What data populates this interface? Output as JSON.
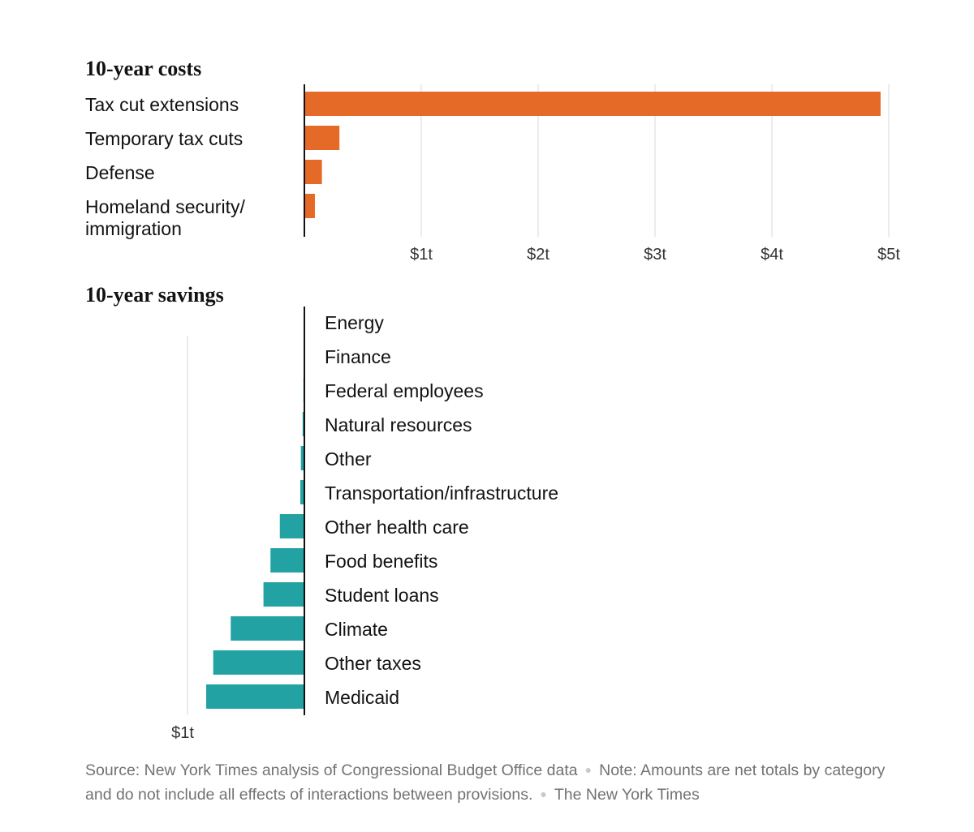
{
  "colors": {
    "cost": "#e66a27",
    "saving": "#22a2a2",
    "axis": "#121212",
    "grid": "#e6e6e6"
  },
  "chart_data": [
    {
      "type": "bar",
      "orientation": "horizontal",
      "title": "10-year costs",
      "categories": [
        "Tax cut extensions",
        "Temporary tax cuts",
        "Defense",
        "Homeland security/\nimmigration"
      ],
      "values": [
        4.93,
        0.3,
        0.15,
        0.09
      ],
      "units": "trillions of dollars",
      "xlim": [
        0,
        5
      ],
      "ticks": [
        1,
        2,
        3,
        4,
        5
      ],
      "tick_labels": [
        "$1t",
        "$2t",
        "$3t",
        "$4t",
        "$5t"
      ]
    },
    {
      "type": "bar",
      "orientation": "horizontal",
      "title": "10-year savings",
      "categories": [
        "Energy",
        "Finance",
        "Federal employees",
        "Natural resources",
        "Other",
        "Transportation/infrastructure",
        "Other health care",
        "Food benefits",
        "Student loans",
        "Climate",
        "Other taxes",
        "Medicaid"
      ],
      "values": [
        0.0,
        -0.005,
        -0.008,
        -0.015,
        -0.03,
        -0.035,
        -0.21,
        -0.29,
        -0.35,
        -0.63,
        -0.78,
        -0.84
      ],
      "units": "trillions of dollars",
      "xlim": [
        -1,
        0
      ],
      "ticks": [
        -1
      ],
      "tick_labels": [
        "$1t"
      ]
    }
  ],
  "footer": {
    "source": "Source: New York Times analysis of Congressional Budget Office data",
    "note": "Note: Amounts are net totals by category and do not include all effects of interactions between provisions.",
    "credit": "The New York Times"
  }
}
